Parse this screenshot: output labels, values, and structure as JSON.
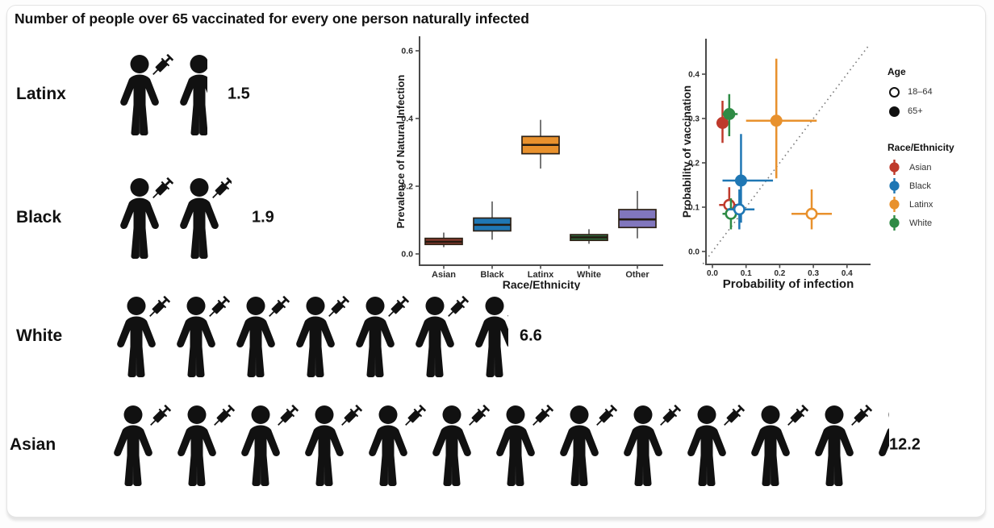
{
  "title": "Number of people over 65 vaccinated for every one person naturally infected",
  "pictogram": {
    "icon": "person-with-syringe",
    "rows": [
      {
        "label": "Latinx",
        "value": "1.5",
        "count": 1.5
      },
      {
        "label": "Black",
        "value": "1.9",
        "count": 1.9
      },
      {
        "label": "White",
        "value": "6.6",
        "count": 6.6
      },
      {
        "label": "Asian",
        "value": "12.2",
        "count": 12.2
      }
    ]
  },
  "chart_data": [
    {
      "type": "box",
      "title": "",
      "xlabel": "Race/Ethnicity",
      "ylabel": "Prevalence of Natural Infection",
      "ylim": [
        -0.03,
        0.65
      ],
      "yticks": [
        0.0,
        0.2,
        0.4,
        0.6
      ],
      "grid": false,
      "categories": [
        "Asian",
        "Black",
        "Latinx",
        "White",
        "Other"
      ],
      "series": [
        {
          "category": "Asian",
          "color": "#8e3b2f",
          "whisker_low": 0.02,
          "q1": 0.028,
          "median": 0.036,
          "q3": 0.046,
          "whisker_high": 0.063
        },
        {
          "category": "Black",
          "color": "#1f77b4",
          "whisker_low": 0.042,
          "q1": 0.068,
          "median": 0.086,
          "q3": 0.106,
          "whisker_high": 0.155
        },
        {
          "category": "Latinx",
          "color": "#e8912d",
          "whisker_low": 0.252,
          "q1": 0.296,
          "median": 0.322,
          "q3": 0.347,
          "whisker_high": 0.396
        },
        {
          "category": "White",
          "color": "#2d6b3c",
          "whisker_low": 0.03,
          "q1": 0.04,
          "median": 0.049,
          "q3": 0.057,
          "whisker_high": 0.073
        },
        {
          "category": "Other",
          "color": "#8176bd",
          "whisker_low": 0.046,
          "q1": 0.078,
          "median": 0.102,
          "q3": 0.131,
          "whisker_high": 0.186
        }
      ]
    },
    {
      "type": "scatter",
      "xlabel": "Probability of infection",
      "ylabel": "Probability of vaccination",
      "xlim": [
        -0.03,
        0.47
      ],
      "ylim": [
        -0.03,
        0.47
      ],
      "xticks": [
        0.0,
        0.1,
        0.2,
        0.3,
        0.4
      ],
      "yticks": [
        0.0,
        0.1,
        0.2,
        0.3,
        0.4
      ],
      "grid": false,
      "identity_line": {
        "style": "dotted",
        "color": "#7a7a7a"
      },
      "points": [
        {
          "race": "Asian",
          "age": "65+",
          "filled": true,
          "color": "#bf3a2c",
          "x": 0.03,
          "y": 0.29,
          "x_err": [
            0.012,
            0.05
          ],
          "y_err": [
            0.245,
            0.34
          ]
        },
        {
          "race": "White",
          "age": "65+",
          "filled": true,
          "color": "#2e8b45",
          "x": 0.05,
          "y": 0.31,
          "x_err": [
            0.03,
            0.075
          ],
          "y_err": [
            0.26,
            0.355
          ]
        },
        {
          "race": "Black",
          "age": "65+",
          "filled": true,
          "color": "#1f77b4",
          "x": 0.085,
          "y": 0.16,
          "x_err": [
            0.03,
            0.18
          ],
          "y_err": [
            0.065,
            0.265
          ]
        },
        {
          "race": "Latinx",
          "age": "65+",
          "filled": true,
          "color": "#e8912d",
          "x": 0.19,
          "y": 0.295,
          "x_err": [
            0.1,
            0.31
          ],
          "y_err": [
            0.165,
            0.435
          ]
        },
        {
          "race": "Asian",
          "age": "18–64",
          "filled": false,
          "color": "#bf3a2c",
          "x": 0.05,
          "y": 0.105,
          "x_err": [
            0.02,
            0.08
          ],
          "y_err": [
            0.075,
            0.145
          ]
        },
        {
          "race": "White",
          "age": "18–64",
          "filled": false,
          "color": "#2e8b45",
          "x": 0.055,
          "y": 0.085,
          "x_err": [
            0.03,
            0.08
          ],
          "y_err": [
            0.05,
            0.12
          ]
        },
        {
          "race": "Black",
          "age": "18–64",
          "filled": false,
          "color": "#1f77b4",
          "x": 0.08,
          "y": 0.095,
          "x_err": [
            0.045,
            0.125
          ],
          "y_err": [
            0.05,
            0.14
          ]
        },
        {
          "race": "Latinx",
          "age": "18–64",
          "filled": false,
          "color": "#e8912d",
          "x": 0.295,
          "y": 0.085,
          "x_err": [
            0.235,
            0.355
          ],
          "y_err": [
            0.05,
            0.14
          ]
        }
      ],
      "legend": {
        "position": "right",
        "age_title": "Age",
        "age_items": [
          {
            "label": "18–64",
            "fill": "open"
          },
          {
            "label": "65+",
            "fill": "filled"
          }
        ],
        "race_title": "Race/Ethnicity",
        "race_items": [
          {
            "label": "Asian",
            "color": "#bf3a2c"
          },
          {
            "label": "Black",
            "color": "#1f77b4"
          },
          {
            "label": "Latinx",
            "color": "#e8912d"
          },
          {
            "label": "White",
            "color": "#2e8b45"
          }
        ]
      }
    }
  ]
}
